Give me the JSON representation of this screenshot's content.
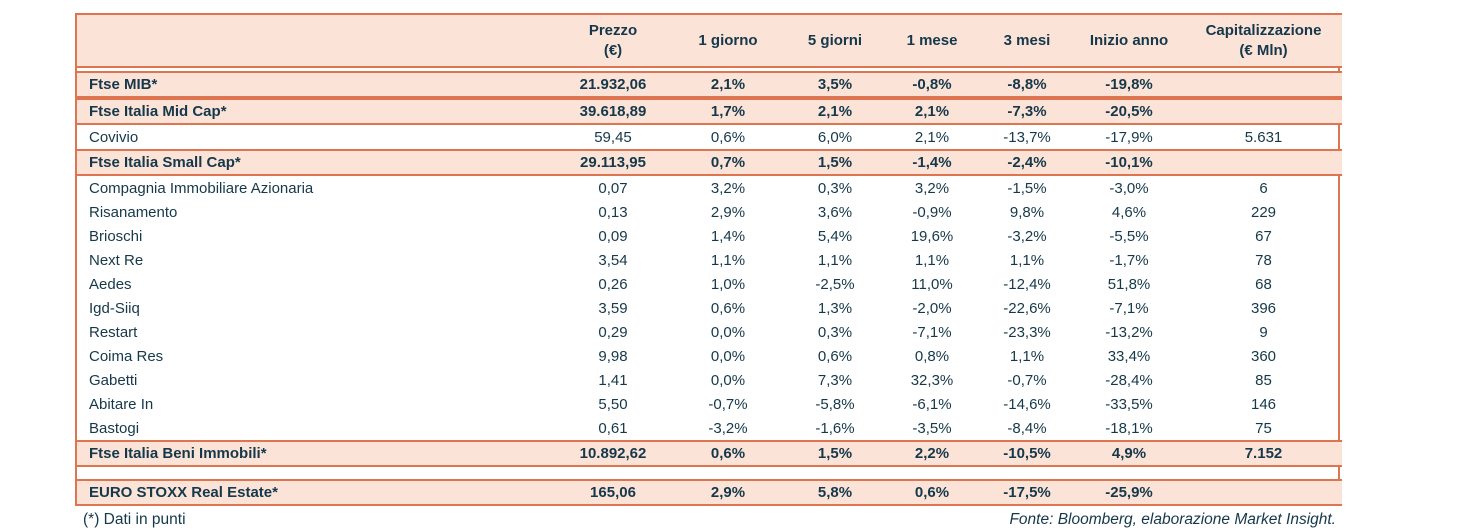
{
  "colors": {
    "accent_border": "#de7450",
    "row_highlight": "#fbe3d8",
    "text": "#15384a"
  },
  "chart_data": {
    "type": "table",
    "columns": [
      "",
      "Prezzo\n(€)",
      "1 giorno",
      "5 giorni",
      "1 mese",
      "3 mesi",
      "Inizio anno",
      "Capitalizzazione\n(€ Mln)"
    ],
    "sections": [
      {
        "rows": [
          {
            "name": "Ftse MIB*",
            "highlight": true,
            "values": [
              "21.932,06",
              "2,1%",
              "3,5%",
              "-0,8%",
              "-8,8%",
              "-19,8%",
              ""
            ]
          },
          {
            "name": "Ftse Italia Mid Cap*",
            "highlight": true,
            "values": [
              "39.618,89",
              "1,7%",
              "2,1%",
              "2,1%",
              "-7,3%",
              "-20,5%",
              ""
            ]
          },
          {
            "name": "Covivio",
            "highlight": false,
            "values": [
              "59,45",
              "0,6%",
              "6,0%",
              "2,1%",
              "-13,7%",
              "-17,9%",
              "5.631"
            ]
          },
          {
            "name": "Ftse Italia Small Cap*",
            "highlight": true,
            "values": [
              "29.113,95",
              "0,7%",
              "1,5%",
              "-1,4%",
              "-2,4%",
              "-10,1%",
              ""
            ]
          },
          {
            "name": "Compagnia Immobiliare Azionaria",
            "highlight": false,
            "values": [
              "0,07",
              "3,2%",
              "0,3%",
              "3,2%",
              "-1,5%",
              "-3,0%",
              "6"
            ]
          },
          {
            "name": "Risanamento",
            "highlight": false,
            "values": [
              "0,13",
              "2,9%",
              "3,6%",
              "-0,9%",
              "9,8%",
              "4,6%",
              "229"
            ]
          },
          {
            "name": "Brioschi",
            "highlight": false,
            "values": [
              "0,09",
              "1,4%",
              "5,4%",
              "19,6%",
              "-3,2%",
              "-5,5%",
              "67"
            ]
          },
          {
            "name": "Next Re",
            "highlight": false,
            "values": [
              "3,54",
              "1,1%",
              "1,1%",
              "1,1%",
              "1,1%",
              "-1,7%",
              "78"
            ]
          },
          {
            "name": "Aedes",
            "highlight": false,
            "values": [
              "0,26",
              "1,0%",
              "-2,5%",
              "11,0%",
              "-12,4%",
              "51,8%",
              "68"
            ]
          },
          {
            "name": "Igd-Siiq",
            "highlight": false,
            "values": [
              "3,59",
              "0,6%",
              "1,3%",
              "-2,0%",
              "-22,6%",
              "-7,1%",
              "396"
            ]
          },
          {
            "name": "Restart",
            "highlight": false,
            "values": [
              "0,29",
              "0,0%",
              "0,3%",
              "-7,1%",
              "-23,3%",
              "-13,2%",
              "9"
            ]
          },
          {
            "name": "Coima Res",
            "highlight": false,
            "values": [
              "9,98",
              "0,0%",
              "0,6%",
              "0,8%",
              "1,1%",
              "33,4%",
              "360"
            ]
          },
          {
            "name": "Gabetti",
            "highlight": false,
            "values": [
              "1,41",
              "0,0%",
              "7,3%",
              "32,3%",
              "-0,7%",
              "-28,4%",
              "85"
            ]
          },
          {
            "name": "Abitare In",
            "highlight": false,
            "values": [
              "5,50",
              "-0,7%",
              "-5,8%",
              "-6,1%",
              "-14,6%",
              "-33,5%",
              "146"
            ]
          },
          {
            "name": "Bastogi",
            "highlight": false,
            "values": [
              "0,61",
              "-3,2%",
              "-1,6%",
              "-3,5%",
              "-8,4%",
              "-18,1%",
              "75"
            ]
          },
          {
            "name": "Ftse Italia Beni Immobili*",
            "highlight": true,
            "values": [
              "10.892,62",
              "0,6%",
              "1,5%",
              "2,2%",
              "-10,5%",
              "4,9%",
              "7.152"
            ]
          }
        ]
      },
      {
        "rows": [
          {
            "name": "EURO STOXX Real Estate*",
            "highlight": true,
            "values": [
              "165,06",
              "2,9%",
              "5,8%",
              "0,6%",
              "-17,5%",
              "-25,9%",
              ""
            ]
          }
        ]
      }
    ]
  },
  "footer": {
    "note": "(*) Dati in punti",
    "source": "Fonte: Bloomberg, elaborazione Market Insight."
  }
}
